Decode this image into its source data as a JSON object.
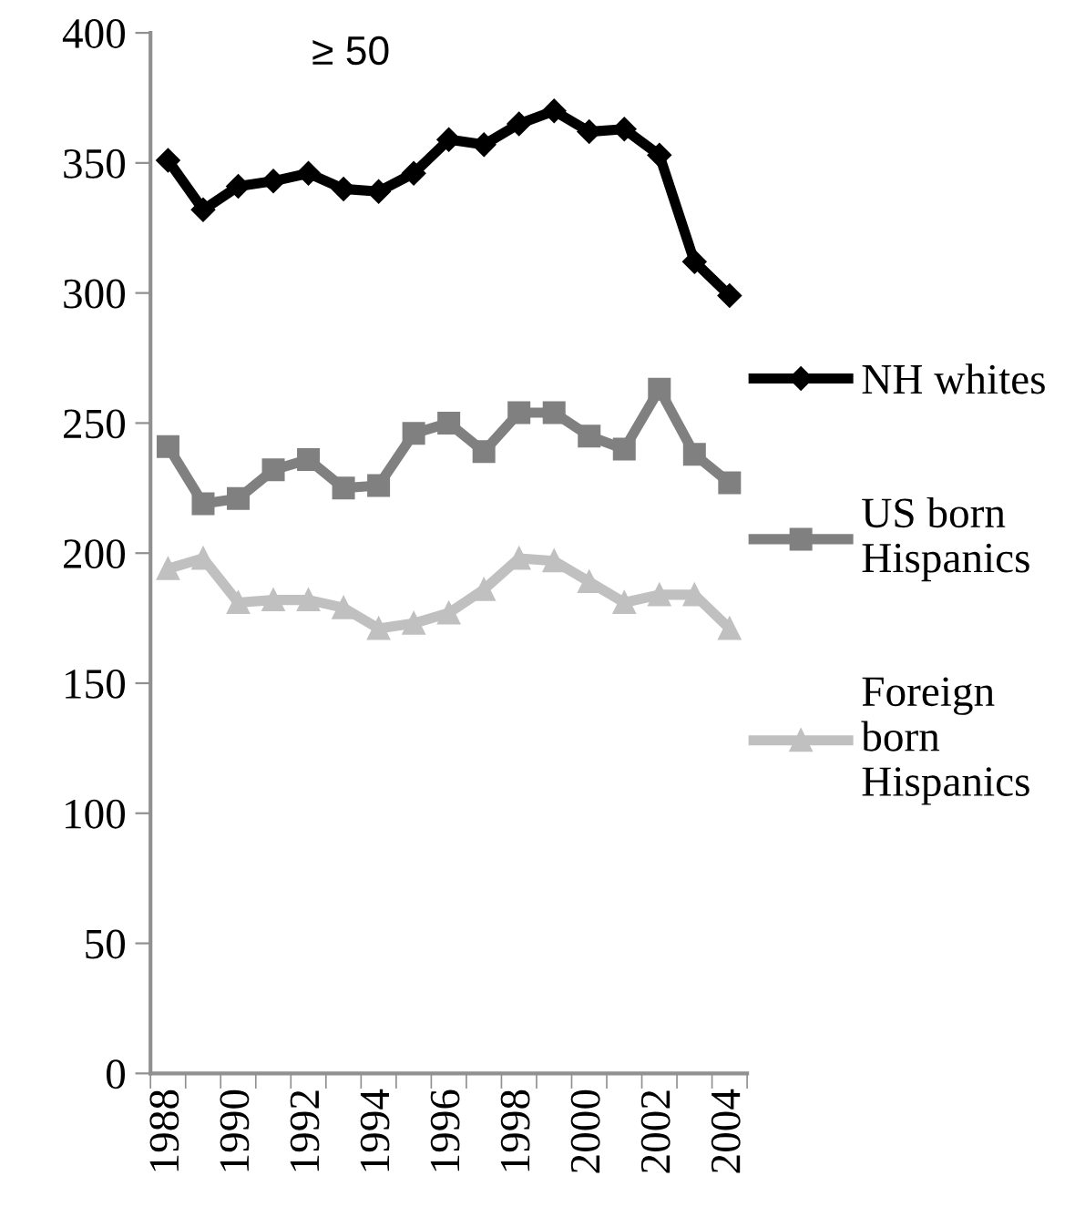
{
  "chart_data": {
    "type": "line",
    "title": "≥ 50",
    "categories": [
      "1988",
      null,
      "1990",
      null,
      "1992",
      null,
      "1994",
      null,
      "1996",
      null,
      "1998",
      null,
      "2000",
      null,
      "2002",
      null,
      "2004"
    ],
    "series": [
      {
        "name": "NH whites",
        "color": "#000000",
        "marker": "diamond",
        "values": [
          351,
          332,
          341,
          343,
          346,
          340,
          339,
          346,
          359,
          357,
          365,
          370,
          362,
          363,
          353,
          312,
          299
        ]
      },
      {
        "name": "US born Hispanics",
        "color": "#808080",
        "marker": "square",
        "values": [
          241,
          219,
          221,
          232,
          236,
          225,
          226,
          246,
          250,
          239,
          254,
          254,
          245,
          240,
          263,
          238,
          227
        ]
      },
      {
        "name": "Foreign born Hispanics",
        "color": "#c0c0c0",
        "marker": "triangle",
        "values": [
          194,
          198,
          181,
          182,
          182,
          179,
          171,
          173,
          177,
          186,
          198,
          197,
          189,
          181,
          184,
          184,
          171
        ]
      }
    ],
    "ylim": [
      0,
      400
    ],
    "yticks": [
      0,
      50,
      100,
      150,
      200,
      250,
      300,
      350,
      400
    ],
    "grid": false,
    "legend": "right",
    "line_style": "solid"
  }
}
